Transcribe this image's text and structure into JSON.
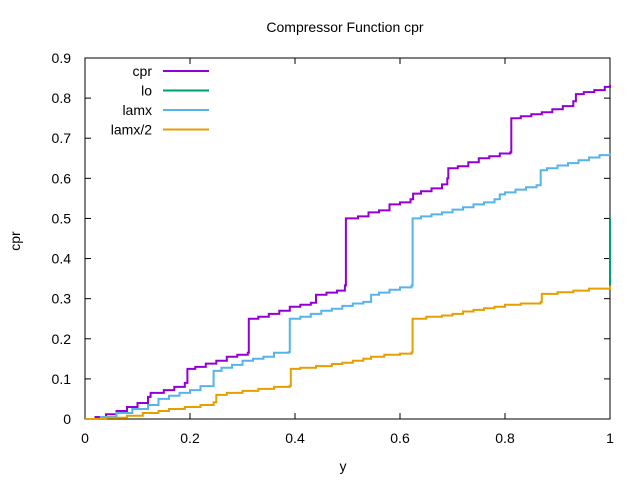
{
  "chart_data": {
    "type": "line",
    "title": "Compressor Function cpr",
    "xlabel": "y",
    "ylabel": "cpr",
    "xlim": [
      0,
      1
    ],
    "ylim": [
      0,
      0.9
    ],
    "xticks": [
      0,
      0.2,
      0.4,
      0.6,
      0.8,
      1
    ],
    "yticks": [
      0,
      0.1,
      0.2,
      0.3,
      0.4,
      0.5,
      0.6,
      0.7,
      0.8,
      0.9
    ],
    "legend": "top-left",
    "series": [
      {
        "name": "cpr",
        "color": "#9400d3",
        "points": [
          [
            0,
            0
          ],
          [
            0.02,
            0.005
          ],
          [
            0.04,
            0.012
          ],
          [
            0.06,
            0.02
          ],
          [
            0.08,
            0.03
          ],
          [
            0.1,
            0.04
          ],
          [
            0.12,
            0.055
          ],
          [
            0.125,
            0.065
          ],
          [
            0.15,
            0.072
          ],
          [
            0.17,
            0.08
          ],
          [
            0.19,
            0.09
          ],
          [
            0.195,
            0.125
          ],
          [
            0.21,
            0.13
          ],
          [
            0.23,
            0.138
          ],
          [
            0.25,
            0.145
          ],
          [
            0.27,
            0.155
          ],
          [
            0.29,
            0.16
          ],
          [
            0.31,
            0.165
          ],
          [
            0.312,
            0.25
          ],
          [
            0.33,
            0.255
          ],
          [
            0.35,
            0.262
          ],
          [
            0.37,
            0.27
          ],
          [
            0.39,
            0.28
          ],
          [
            0.41,
            0.285
          ],
          [
            0.43,
            0.29
          ],
          [
            0.44,
            0.31
          ],
          [
            0.46,
            0.315
          ],
          [
            0.48,
            0.32
          ],
          [
            0.495,
            0.333
          ],
          [
            0.497,
            0.5
          ],
          [
            0.52,
            0.505
          ],
          [
            0.54,
            0.515
          ],
          [
            0.56,
            0.52
          ],
          [
            0.58,
            0.535
          ],
          [
            0.6,
            0.54
          ],
          [
            0.62,
            0.548
          ],
          [
            0.625,
            0.562
          ],
          [
            0.64,
            0.568
          ],
          [
            0.66,
            0.575
          ],
          [
            0.68,
            0.585
          ],
          [
            0.69,
            0.6
          ],
          [
            0.692,
            0.625
          ],
          [
            0.71,
            0.63
          ],
          [
            0.73,
            0.64
          ],
          [
            0.75,
            0.65
          ],
          [
            0.77,
            0.655
          ],
          [
            0.79,
            0.662
          ],
          [
            0.81,
            0.665
          ],
          [
            0.812,
            0.75
          ],
          [
            0.83,
            0.755
          ],
          [
            0.85,
            0.76
          ],
          [
            0.87,
            0.765
          ],
          [
            0.89,
            0.772
          ],
          [
            0.91,
            0.78
          ],
          [
            0.93,
            0.792
          ],
          [
            0.935,
            0.81
          ],
          [
            0.95,
            0.815
          ],
          [
            0.97,
            0.82
          ],
          [
            0.99,
            0.828
          ],
          [
            1,
            0.833
          ]
        ]
      },
      {
        "name": "lo",
        "color": "#009e73",
        "points": [
          [
            1,
            0.333
          ],
          [
            1,
            0.5
          ]
        ]
      },
      {
        "name": "lamx",
        "color": "#56b4e9",
        "points": [
          [
            0,
            0
          ],
          [
            0.03,
            0.005
          ],
          [
            0.06,
            0.015
          ],
          [
            0.09,
            0.025
          ],
          [
            0.12,
            0.035
          ],
          [
            0.14,
            0.05
          ],
          [
            0.16,
            0.058
          ],
          [
            0.18,
            0.065
          ],
          [
            0.2,
            0.072
          ],
          [
            0.22,
            0.082
          ],
          [
            0.245,
            0.12
          ],
          [
            0.26,
            0.128
          ],
          [
            0.28,
            0.135
          ],
          [
            0.3,
            0.145
          ],
          [
            0.32,
            0.15
          ],
          [
            0.34,
            0.155
          ],
          [
            0.36,
            0.165
          ],
          [
            0.388,
            0.167
          ],
          [
            0.39,
            0.25
          ],
          [
            0.41,
            0.255
          ],
          [
            0.43,
            0.262
          ],
          [
            0.45,
            0.27
          ],
          [
            0.47,
            0.275
          ],
          [
            0.49,
            0.282
          ],
          [
            0.51,
            0.288
          ],
          [
            0.53,
            0.292
          ],
          [
            0.545,
            0.31
          ],
          [
            0.56,
            0.315
          ],
          [
            0.58,
            0.322
          ],
          [
            0.6,
            0.328
          ],
          [
            0.622,
            0.333
          ],
          [
            0.624,
            0.5
          ],
          [
            0.64,
            0.505
          ],
          [
            0.66,
            0.51
          ],
          [
            0.68,
            0.515
          ],
          [
            0.7,
            0.522
          ],
          [
            0.72,
            0.528
          ],
          [
            0.74,
            0.535
          ],
          [
            0.76,
            0.54
          ],
          [
            0.78,
            0.548
          ],
          [
            0.79,
            0.56
          ],
          [
            0.8,
            0.565
          ],
          [
            0.82,
            0.572
          ],
          [
            0.84,
            0.578
          ],
          [
            0.86,
            0.583
          ],
          [
            0.868,
            0.62
          ],
          [
            0.88,
            0.625
          ],
          [
            0.9,
            0.632
          ],
          [
            0.92,
            0.638
          ],
          [
            0.94,
            0.645
          ],
          [
            0.96,
            0.652
          ],
          [
            0.98,
            0.658
          ],
          [
            1,
            0.663
          ]
        ]
      },
      {
        "name": "lamx/2",
        "color": "#e69f00",
        "points": [
          [
            0,
            0
          ],
          [
            0.04,
            0.003
          ],
          [
            0.08,
            0.008
          ],
          [
            0.11,
            0.015
          ],
          [
            0.14,
            0.02
          ],
          [
            0.16,
            0.025
          ],
          [
            0.19,
            0.03
          ],
          [
            0.22,
            0.035
          ],
          [
            0.245,
            0.042
          ],
          [
            0.25,
            0.06
          ],
          [
            0.27,
            0.065
          ],
          [
            0.3,
            0.07
          ],
          [
            0.33,
            0.075
          ],
          [
            0.36,
            0.08
          ],
          [
            0.39,
            0.083
          ],
          [
            0.392,
            0.125
          ],
          [
            0.41,
            0.128
          ],
          [
            0.44,
            0.132
          ],
          [
            0.47,
            0.137
          ],
          [
            0.49,
            0.14
          ],
          [
            0.51,
            0.145
          ],
          [
            0.53,
            0.15
          ],
          [
            0.545,
            0.155
          ],
          [
            0.57,
            0.16
          ],
          [
            0.6,
            0.163
          ],
          [
            0.622,
            0.166
          ],
          [
            0.624,
            0.25
          ],
          [
            0.65,
            0.255
          ],
          [
            0.68,
            0.258
          ],
          [
            0.7,
            0.262
          ],
          [
            0.72,
            0.268
          ],
          [
            0.74,
            0.272
          ],
          [
            0.76,
            0.276
          ],
          [
            0.78,
            0.28
          ],
          [
            0.8,
            0.285
          ],
          [
            0.83,
            0.288
          ],
          [
            0.868,
            0.292
          ],
          [
            0.87,
            0.312
          ],
          [
            0.9,
            0.316
          ],
          [
            0.93,
            0.32
          ],
          [
            0.96,
            0.325
          ],
          [
            1,
            0.332
          ]
        ]
      }
    ]
  }
}
